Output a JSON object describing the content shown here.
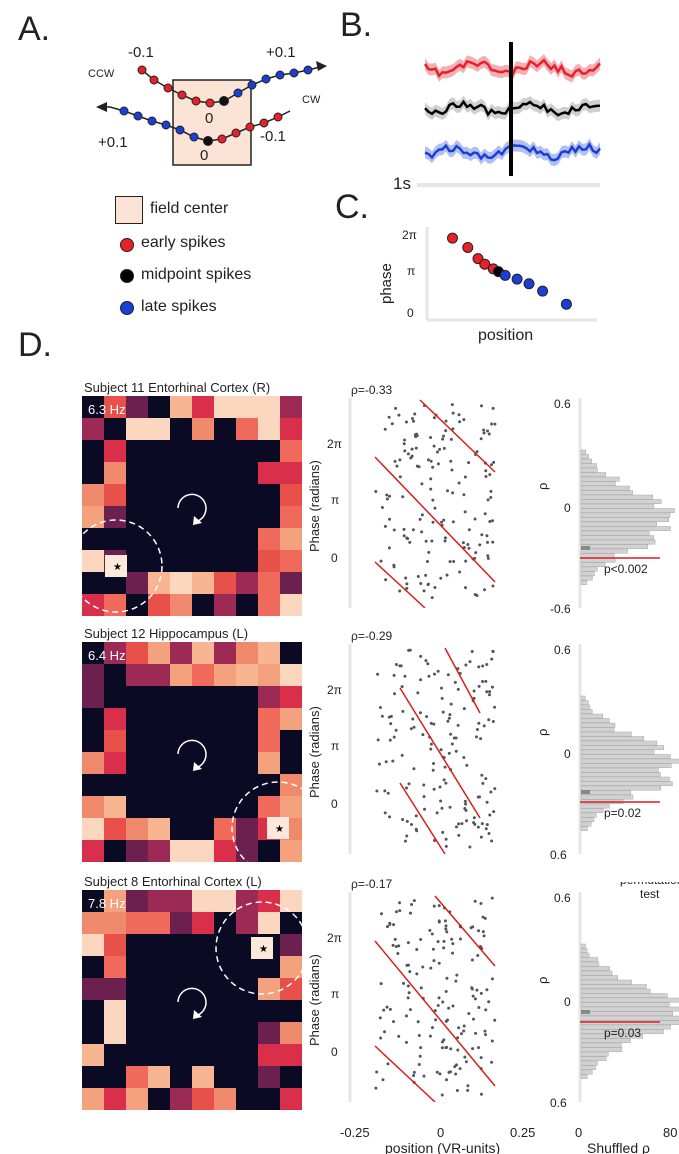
{
  "panels": {
    "a": "A.",
    "b": "B.",
    "c": "C.",
    "d": "D."
  },
  "panel_a": {
    "labels": {
      "ccw": "CCW",
      "cw": "CW",
      "top_left": "-0.1",
      "top_right": "+0.1",
      "bottom_left": "+0.1",
      "bottom_right": "-0.1",
      "zero_top": "0",
      "zero_bottom": "0"
    },
    "legend": [
      {
        "label": "field center",
        "marker": "square"
      },
      {
        "label": "early spikes",
        "color": "#e8202a"
      },
      {
        "label": "midpoint spikes",
        "color": "#000000"
      },
      {
        "label": "late spikes",
        "color": "#1a3fd6"
      }
    ]
  },
  "panel_b": {
    "scale_label": "1s",
    "colors": [
      "#e8202a",
      "#000000",
      "#1a3fd6"
    ]
  },
  "panel_c": {
    "ylabel": "phase",
    "xlabel": "position",
    "yticks": [
      "2π",
      "π",
      "0"
    ]
  },
  "chart_data": [
    {
      "type": "scatter",
      "panel": "C",
      "xlabel": "position",
      "ylabel": "phase",
      "y_ticks": [
        "2π",
        "π",
        "0"
      ],
      "points": [
        {
          "x": 0.15,
          "y": 0.88,
          "color": "#e8202a"
        },
        {
          "x": 0.24,
          "y": 0.78,
          "color": "#e8202a"
        },
        {
          "x": 0.3,
          "y": 0.66,
          "color": "#e8202a"
        },
        {
          "x": 0.34,
          "y": 0.6,
          "color": "#e8202a"
        },
        {
          "x": 0.39,
          "y": 0.55,
          "color": "#e8202a"
        },
        {
          "x": 0.42,
          "y": 0.52,
          "color": "#000000"
        },
        {
          "x": 0.46,
          "y": 0.48,
          "color": "#1a3fd6"
        },
        {
          "x": 0.53,
          "y": 0.44,
          "color": "#1a3fd6"
        },
        {
          "x": 0.6,
          "y": 0.39,
          "color": "#1a3fd6"
        },
        {
          "x": 0.68,
          "y": 0.31,
          "color": "#1a3fd6"
        },
        {
          "x": 0.82,
          "y": 0.17,
          "color": "#1a3fd6"
        }
      ]
    },
    {
      "type": "scatter",
      "panel": "D",
      "xlabel": "position (VR-units)",
      "ylabel": "Phase (radians)",
      "xlim": [
        -0.25,
        0.25
      ],
      "x_ticks": [
        "-0.25",
        "0",
        "0.25"
      ],
      "y_ticks": [
        "2π",
        "π",
        "0"
      ],
      "rows": [
        {
          "title": "Subject 11 Entorhinal Cortex (R)",
          "freq": "6.3 Hz",
          "rho": "ρ=-0.33",
          "pvalue": "p<0.002"
        },
        {
          "title": "Subject 12 Hippocampus (L)",
          "freq": "6.4 Hz",
          "rho": "ρ=-0.29",
          "pvalue": "p=0.02"
        },
        {
          "title": "Subject 8 Entorhinal Cortex (L)",
          "freq": "7.8 Hz",
          "rho": "ρ=-0.17",
          "pvalue": "p=0.03"
        }
      ]
    },
    {
      "type": "bar",
      "panel": "D-histogram",
      "xlabel": "Shuffled ρ",
      "ylabel": "ρ",
      "xlim": [
        0,
        80
      ],
      "x_ticks": [
        "0",
        "80"
      ],
      "y_ticks": [
        "0.6",
        "0",
        "-0.6"
      ],
      "y_ticks_rows23": [
        "0.6",
        "0",
        "0.6"
      ],
      "extra_title": "permutation\ntest"
    }
  ],
  "panel_d": {
    "ylabel": "Phase (radians)",
    "xlabel": "position (VR-units)",
    "hist_ylabel": "ρ",
    "hist_xlabel": "Shuffled ρ",
    "perm_title_1": "permutation",
    "perm_title_2": "test",
    "rows": [
      {
        "title": "Subject 11 Entorhinal Cortex (R)",
        "freq": "6.3 Hz",
        "rho": "ρ=-0.33",
        "p": "p<0.002",
        "hist_top": "0.6",
        "hist_mid": "0",
        "hist_bottom": "-0.6"
      },
      {
        "title": "Subject 12 Hippocampus (L)",
        "freq": "6.4 Hz",
        "rho": "ρ=-0.29",
        "p": "p=0.02",
        "hist_top": "0.6",
        "hist_mid": "0",
        "hist_bottom": "0.6"
      },
      {
        "title": "Subject 8 Entorhinal Cortex (L)",
        "freq": "7.8 Hz",
        "rho": "ρ=-0.17",
        "p": "p=0.03",
        "hist_top": "0.6",
        "hist_mid": "0",
        "hist_bottom": "0.6"
      }
    ],
    "xticks": {
      "left": "-0.25",
      "mid": "0",
      "right": "0.25"
    },
    "hist_xticks": {
      "left": "0",
      "right": "80"
    }
  }
}
